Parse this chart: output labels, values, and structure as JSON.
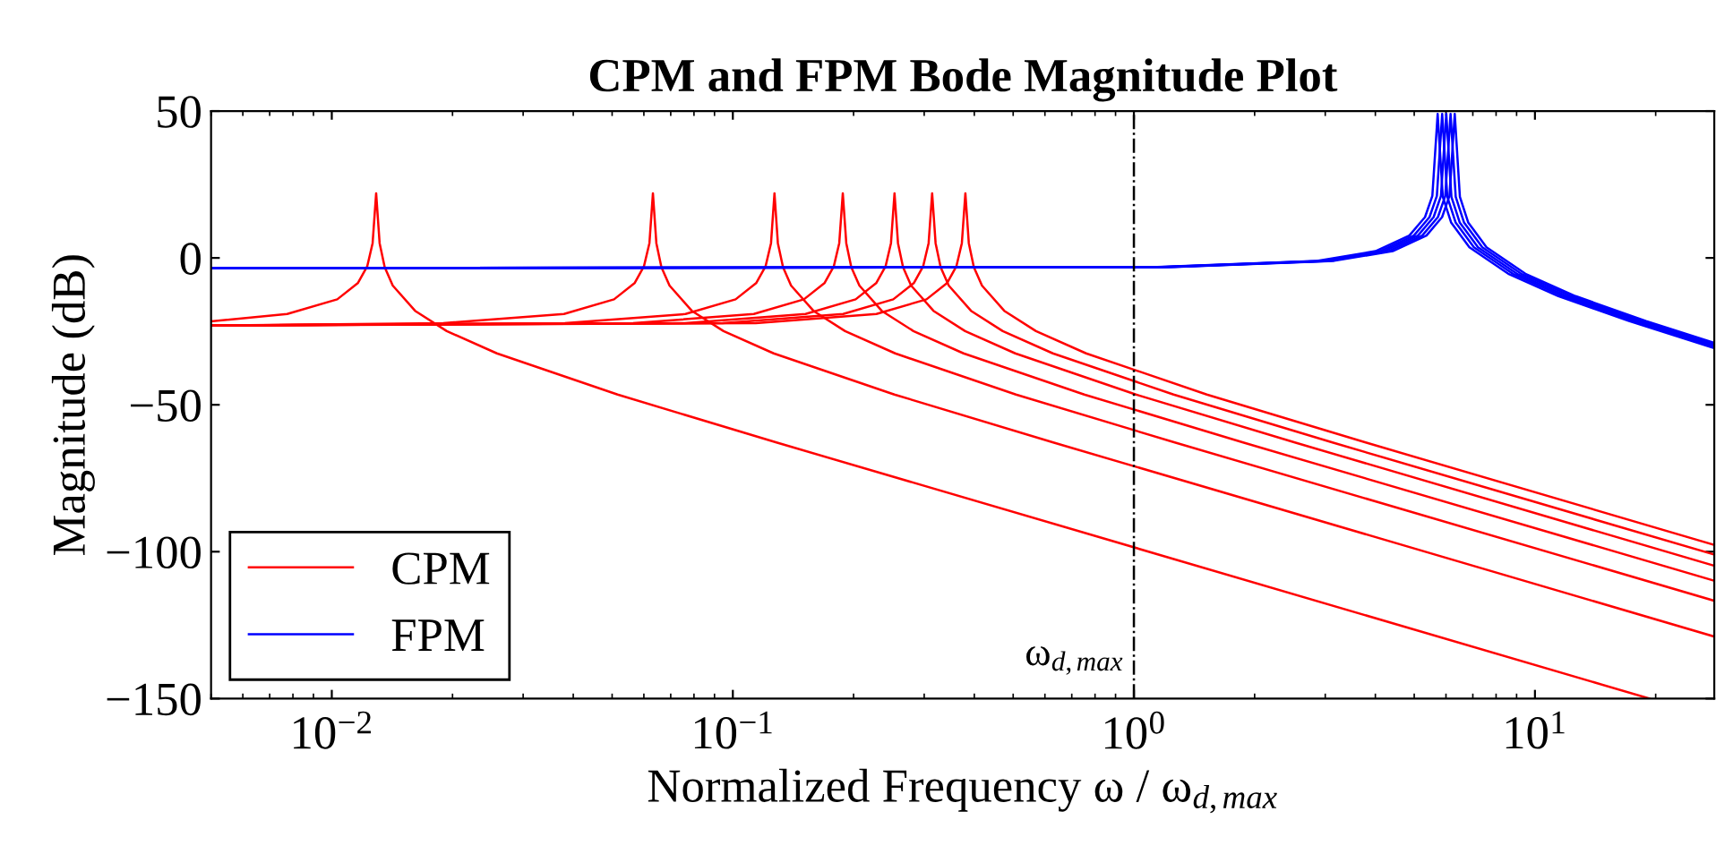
{
  "chart_data": {
    "type": "line",
    "title": "CPM and FPM Bode Magnitude Plot",
    "xlabel": "Normalized Frequency ω / ω$_{d,max}$",
    "ylabel": "Magnitude (dB)",
    "log": "x",
    "xlim": [
      0.005,
      28
    ],
    "ylim": [
      -150,
      50
    ],
    "xticks": [
      {
        "value": 0.01,
        "label": "10$^{−2}$"
      },
      {
        "value": 0.1,
        "label": "10$^{−1}$"
      },
      {
        "value": 1,
        "label": "10$^{0}$"
      },
      {
        "value": 10,
        "label": "10$^{1}$"
      }
    ],
    "yticks": [
      {
        "value": -150,
        "label": "−150"
      },
      {
        "value": -100,
        "label": "−100"
      },
      {
        "value": -50,
        "label": "−50"
      },
      0,
      50
    ],
    "grid": false,
    "legend": "bottom left",
    "marker": "none",
    "line_style": "solid",
    "ref_lines": [
      {
        "axis": "x",
        "value": 1,
        "label": "ω$_{d,max}$",
        "color": "#000000",
        "line_style": "dashdot"
      }
    ],
    "series": [
      {
        "name": "CPM",
        "color": "#ff0000",
        "x": [
          0.005,
          0.00774,
          0.01032,
          0.01161,
          0.01226,
          0.01264,
          0.0129,
          0.01316,
          0.01355,
          0.01419,
          0.01613,
          0.01935,
          0.0258,
          0.0516,
          0.129,
          19.3
        ],
        "values": [
          -21.6,
          -19.1,
          -14.1,
          -8.6,
          -2.8,
          5,
          22,
          5,
          -3.2,
          -9.4,
          -18,
          -24.9,
          -32.5,
          -46.5,
          -62.9,
          -150
        ]
      },
      {
        "color": "#ff0000",
        "x": [
          0.005,
          0.01896,
          0.03792,
          0.05056,
          0.05688,
          0.06004,
          0.06194,
          0.0632,
          0.06446,
          0.06636,
          0.06952,
          0.079,
          0.0948,
          0.1264,
          0.2528,
          0.632,
          28
        ],
        "values": [
          -23,
          -22.2,
          -19.1,
          -14.1,
          -8.6,
          -2.8,
          5,
          22,
          5,
          -3.2,
          -9.4,
          -18,
          -24.9,
          -32.5,
          -46.5,
          -62.9,
          -128.9
        ]
      },
      {
        "color": "#ff0000",
        "x": [
          0.005,
          0.0381,
          0.0762,
          0.1016,
          0.1143,
          0.1207,
          0.1245,
          0.127,
          0.1295,
          0.1334,
          0.1397,
          0.1588,
          0.1905,
          0.254,
          0.508,
          1.27,
          28
        ],
        "values": [
          -23,
          -22.2,
          -19.1,
          -14.1,
          -8.6,
          -2.8,
          5,
          22,
          5,
          -3.2,
          -9.4,
          -18,
          -24.9,
          -32.5,
          -46.5,
          -62.9,
          -116.7
        ]
      },
      {
        "color": "#ff0000",
        "x": [
          0.005,
          0.0564,
          0.1128,
          0.1504,
          0.1692,
          0.1786,
          0.1842,
          0.188,
          0.1918,
          0.1974,
          0.2068,
          0.235,
          0.282,
          0.376,
          0.752,
          1.88,
          28
        ],
        "values": [
          -23,
          -22.2,
          -19.1,
          -14.1,
          -8.6,
          -2.8,
          5,
          22,
          5,
          -3.2,
          -9.4,
          -18,
          -24.9,
          -32.5,
          -46.5,
          -62.9,
          -109.9
        ]
      },
      {
        "color": "#ff0000",
        "x": [
          0.005,
          0.0759,
          0.1518,
          0.2024,
          0.2277,
          0.2404,
          0.2479,
          0.253,
          0.2581,
          0.2657,
          0.2783,
          0.3163,
          0.3795,
          0.506,
          1.012,
          2.53,
          28
        ],
        "values": [
          -23,
          -22.2,
          -19.1,
          -14.1,
          -8.6,
          -2.8,
          5,
          22,
          5,
          -3.2,
          -9.4,
          -18,
          -24.9,
          -32.5,
          -46.5,
          -62.9,
          -104.8
        ]
      },
      {
        "color": "#ff0000",
        "x": [
          0.005,
          0.0942,
          0.1884,
          0.2512,
          0.2826,
          0.2983,
          0.3077,
          0.314,
          0.3203,
          0.3297,
          0.3454,
          0.3925,
          0.471,
          0.628,
          1.256,
          3.14,
          28
        ],
        "values": [
          -23,
          -22.2,
          -19.1,
          -14.1,
          -8.6,
          -2.8,
          5,
          22,
          5,
          -3.2,
          -9.4,
          -18,
          -24.9,
          -32.5,
          -46.5,
          -62.9,
          -101
        ]
      },
      {
        "color": "#ff0000",
        "x": [
          0.005,
          0.114,
          0.228,
          0.304,
          0.342,
          0.361,
          0.3724,
          0.38,
          0.3876,
          0.399,
          0.418,
          0.475,
          0.57,
          0.76,
          1.52,
          3.8,
          28
        ],
        "values": [
          -23,
          -22.2,
          -19.1,
          -14.1,
          -8.6,
          -2.8,
          5,
          22,
          5,
          -3.2,
          -9.4,
          -18,
          -24.9,
          -32.5,
          -46.5,
          -62.9,
          -97.7
        ]
      },
      {
        "name": "FPM",
        "color": "#0000ff",
        "x": [
          0.005,
          1.144,
          2.86,
          4.004,
          4.862,
          5.32,
          5.548,
          5.72,
          5.892,
          6.178,
          6.864,
          8.58,
          11.44,
          17.16,
          28
        ],
        "values": [
          -3.5,
          -3.1,
          -1,
          2.3,
          7.6,
          13.9,
          21.1,
          49,
          20.8,
          12.1,
          3.6,
          -5.4,
          -13,
          -21.5,
          -30.7
        ]
      },
      {
        "color": "#0000ff",
        "x": [
          0.005,
          1.174,
          2.935,
          4.109,
          4.99,
          5.459,
          5.694,
          5.87,
          6.046,
          6.34,
          7.044,
          8.805,
          11.74,
          17.61,
          28
        ],
        "values": [
          -3.5,
          -3.1,
          -1,
          2.3,
          7.6,
          13.9,
          21.1,
          49,
          20.8,
          12.1,
          3.6,
          -5.4,
          -13,
          -21.5,
          -30.2
        ]
      },
      {
        "color": "#0000ff",
        "x": [
          0.005,
          1.202,
          3.005,
          4.207,
          5.109,
          5.589,
          5.83,
          6.01,
          6.19,
          6.491,
          7.212,
          9.015,
          12.02,
          18.03,
          28
        ],
        "values": [
          -3.5,
          -3.1,
          -1,
          2.3,
          7.6,
          13.9,
          21.1,
          49,
          20.8,
          12.1,
          3.6,
          -5.4,
          -13,
          -21.5,
          -29.8
        ]
      },
      {
        "color": "#0000ff",
        "x": [
          0.005,
          1.232,
          3.08,
          4.312,
          5.236,
          5.729,
          5.975,
          6.16,
          6.345,
          6.653,
          7.392,
          9.24,
          12.32,
          18.48,
          28
        ],
        "values": [
          -3.5,
          -3.1,
          -1,
          2.3,
          7.6,
          13.9,
          21.1,
          49,
          20.8,
          12.1,
          3.6,
          -5.4,
          -13,
          -21.5,
          -29.4
        ]
      },
      {
        "color": "#0000ff",
        "x": [
          0.005,
          1.262,
          3.155,
          4.417,
          5.364,
          5.868,
          6.121,
          6.31,
          6.499,
          6.815,
          7.572,
          9.465,
          12.62,
          18.93,
          28
        ],
        "values": [
          -3.5,
          -3.1,
          -1,
          2.3,
          7.6,
          13.9,
          21.1,
          49,
          20.8,
          12.1,
          3.6,
          -5.4,
          -13,
          -21.5,
          -28.9
        ]
      }
    ]
  }
}
